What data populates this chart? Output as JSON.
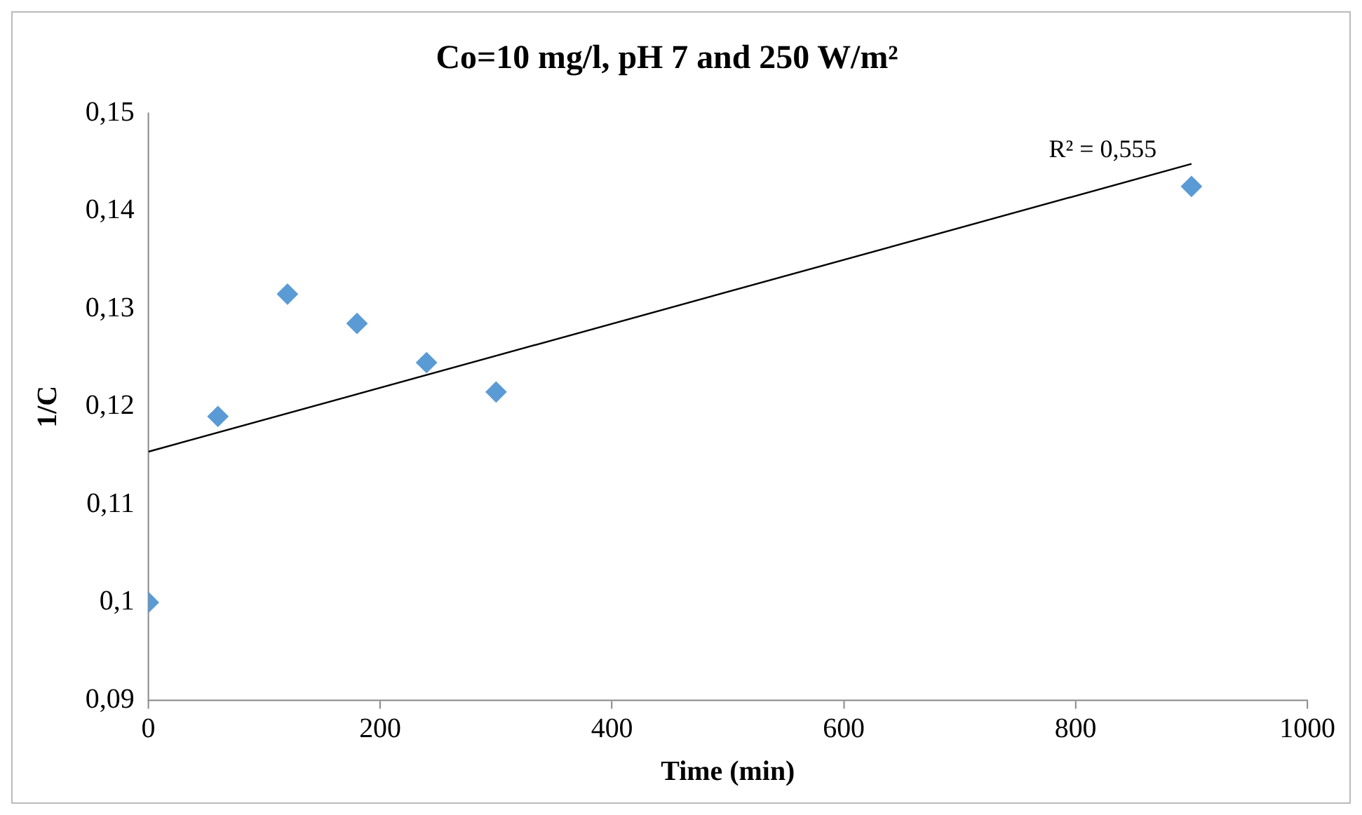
{
  "chart_data": {
    "type": "scatter",
    "title": "Co=10 mg/l, pH 7 and 250 W/m²",
    "xlabel": "Time (min)",
    "ylabel": "1/C",
    "x": [
      0,
      60,
      120,
      180,
      240,
      300,
      900
    ],
    "series": [
      {
        "color": "#5b9bd5",
        "marker": "diamond",
        "values": [
          0.1,
          0.119,
          0.1315,
          0.1285,
          0.1245,
          0.1215,
          0.1425
        ]
      },
      {
        "type": "line",
        "color": "#000000",
        "marker": "none",
        "x": [
          0,
          900
        ],
        "values": [
          0.1154,
          0.1448
        ]
      }
    ],
    "xlim": [
      0,
      1000
    ],
    "xticks": [
      0,
      200,
      400,
      600,
      800,
      1000
    ],
    "ylim": [
      0.09,
      0.15
    ],
    "yticks": [
      {
        "value": 0.09,
        "label": "0,09"
      },
      {
        "value": 0.1,
        "label": "0,1"
      },
      {
        "value": 0.11,
        "label": "0,11"
      },
      {
        "value": 0.12,
        "label": "0,12"
      },
      {
        "value": 0.13,
        "label": "0,13"
      },
      {
        "value": 0.14,
        "label": "0,14"
      },
      {
        "value": 0.15,
        "label": "0,15"
      }
    ],
    "annotations": [
      "R² = 0,555"
    ],
    "grid": false,
    "legend": false
  }
}
